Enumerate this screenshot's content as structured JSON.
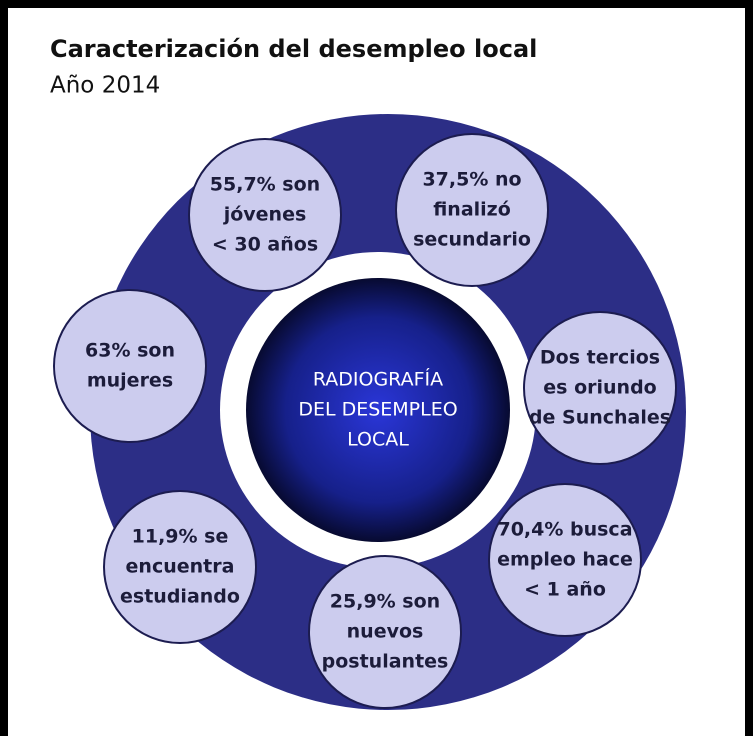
{
  "header": {
    "title": "Caracterización del desempleo local",
    "subtitle": "Año 2014"
  },
  "center": {
    "lines": [
      "RADIOGRAFÍA",
      "DEL DESEMPLEO",
      "LOCAL"
    ]
  },
  "nodes": [
    {
      "lines": [
        "55,7% son",
        "jóvenes",
        "< 30 años"
      ]
    },
    {
      "lines": [
        "37,5% no",
        "finalizó",
        "secundario"
      ]
    },
    {
      "lines": [
        "Dos tercios",
        "es oriundo",
        "de Sunchales"
      ]
    },
    {
      "lines": [
        "70,4% busca",
        "empleo hace",
        "< 1 año"
      ]
    },
    {
      "lines": [
        "25,9% son",
        "nuevos",
        "postulantes"
      ]
    },
    {
      "lines": [
        "11,9% se",
        "encuentra",
        "estudiando"
      ]
    },
    {
      "lines": [
        "63% son",
        "mujeres"
      ]
    }
  ]
}
